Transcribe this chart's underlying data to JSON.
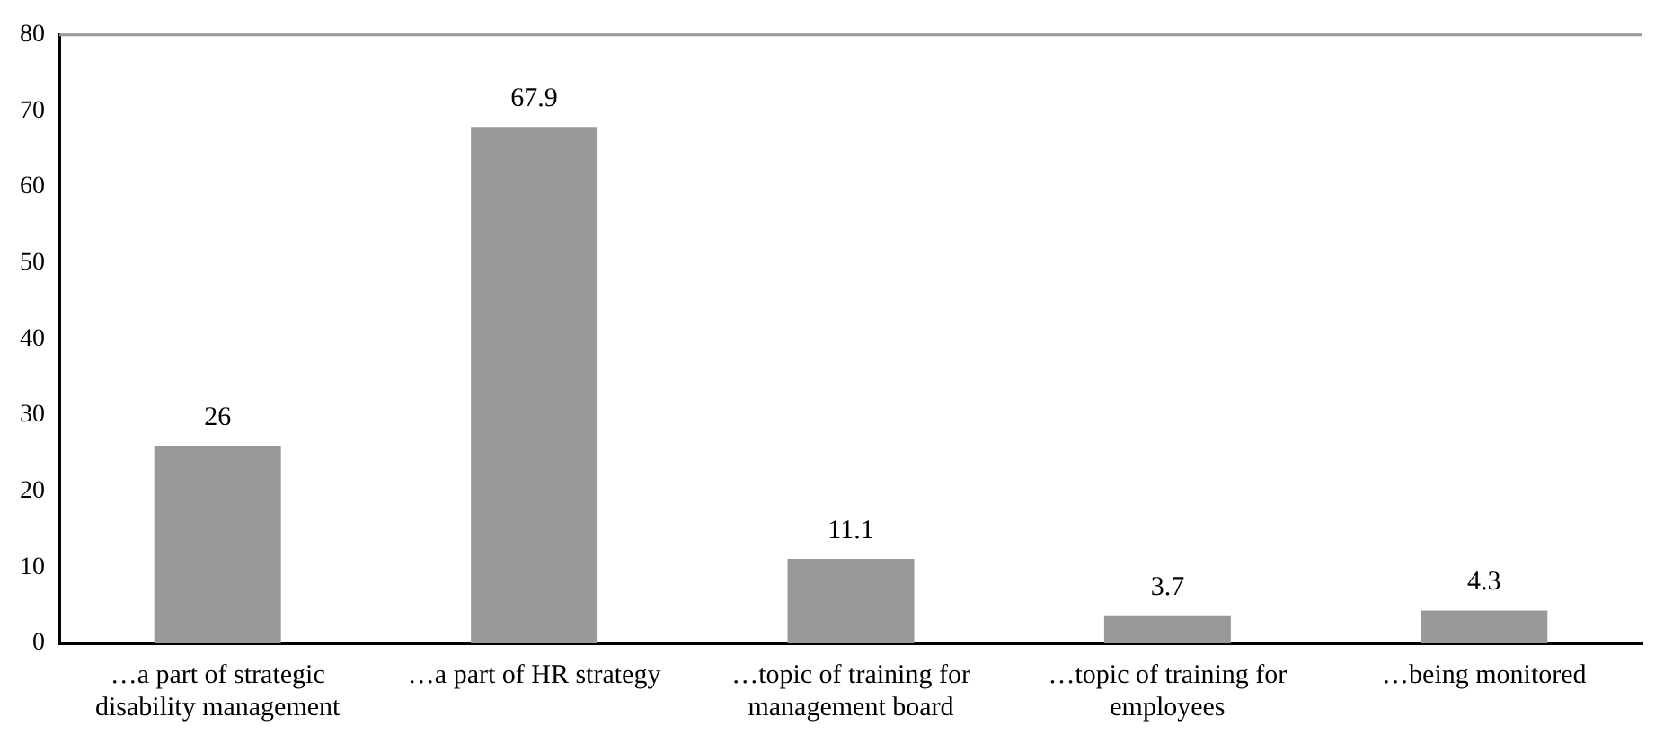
{
  "chart_data": {
    "type": "bar",
    "categories": [
      "…a part of strategic disability management",
      "…a part of HR strategy",
      "…topic of training for management board",
      "…topic of training for employees",
      "…being monitored"
    ],
    "values": [
      26,
      67.9,
      11.1,
      3.7,
      4.3
    ],
    "color": "#999999",
    "ylim": [
      0,
      80
    ],
    "yticks": [
      0,
      10,
      20,
      30,
      40,
      50,
      60,
      70,
      80
    ],
    "grid": false,
    "data_labels": true
  }
}
